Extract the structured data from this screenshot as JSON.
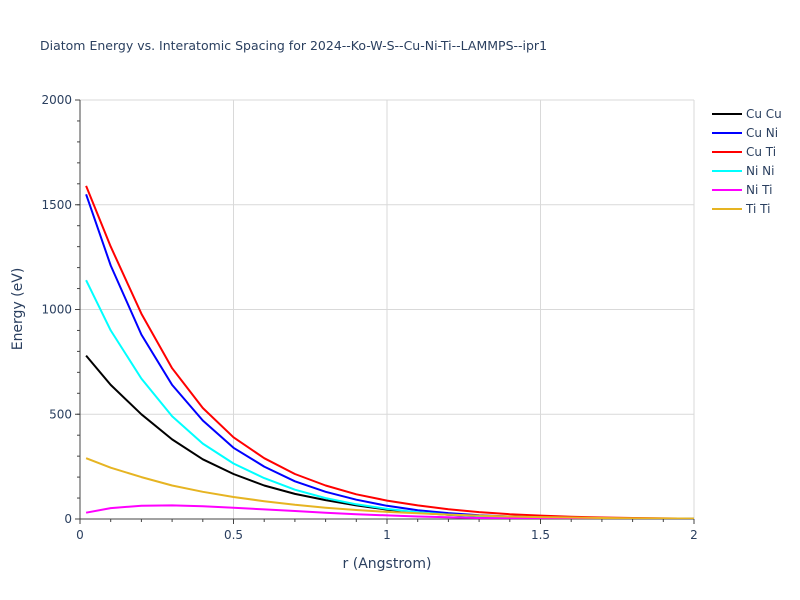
{
  "chart_data": {
    "type": "line",
    "title": "Diatom Energy vs. Interatomic Spacing for 2024--Ko-W-S--Cu-Ni-Ti--LAMMPS--ipr1",
    "xlabel": "r (Angstrom)",
    "ylabel": "Energy (eV)",
    "xlim": [
      0,
      2
    ],
    "ylim": [
      0,
      2000
    ],
    "xticks": [
      "0",
      "0.5",
      "1",
      "1.5",
      "2"
    ],
    "yticks": [
      "0",
      "500",
      "1000",
      "1500",
      "2000"
    ],
    "x_minor_step": 0.1,
    "y_minor_step": 100,
    "grid": true,
    "legend_position": "top-right",
    "series": [
      {
        "name": "Cu Cu",
        "color": "#000000",
        "x": [
          0.02,
          0.1,
          0.2,
          0.3,
          0.4,
          0.5,
          0.6,
          0.7,
          0.8,
          0.9,
          1.0,
          1.1,
          1.2,
          1.3,
          1.4,
          1.5,
          1.6,
          1.7,
          1.8,
          1.9,
          2.0
        ],
        "y": [
          780,
          640,
          500,
          380,
          285,
          215,
          160,
          120,
          90,
          65,
          45,
          30,
          20,
          13,
          9,
          6,
          4,
          3,
          2,
          1,
          1
        ]
      },
      {
        "name": "Cu Ni",
        "color": "#0000ff",
        "x": [
          0.02,
          0.1,
          0.2,
          0.3,
          0.4,
          0.5,
          0.6,
          0.7,
          0.8,
          0.9,
          1.0,
          1.1,
          1.2,
          1.3,
          1.4,
          1.5,
          1.6,
          1.7,
          1.8,
          1.9,
          2.0
        ],
        "y": [
          1550,
          1210,
          880,
          640,
          470,
          340,
          250,
          180,
          130,
          92,
          63,
          42,
          28,
          18,
          12,
          8,
          5,
          3,
          2,
          1,
          1
        ]
      },
      {
        "name": "Cu Ti",
        "color": "#ff0000",
        "x": [
          0.02,
          0.1,
          0.2,
          0.3,
          0.4,
          0.5,
          0.6,
          0.7,
          0.8,
          0.9,
          1.0,
          1.1,
          1.2,
          1.3,
          1.4,
          1.5,
          1.6,
          1.7,
          1.8,
          1.9,
          2.0
        ],
        "y": [
          1590,
          1300,
          980,
          720,
          530,
          390,
          290,
          215,
          160,
          118,
          88,
          65,
          47,
          33,
          23,
          16,
          11,
          7,
          5,
          3,
          2
        ]
      },
      {
        "name": "Ni Ni",
        "color": "#00ffff",
        "x": [
          0.02,
          0.1,
          0.2,
          0.3,
          0.4,
          0.5,
          0.6,
          0.7,
          0.8,
          0.9,
          1.0,
          1.1,
          1.2,
          1.3,
          1.4,
          1.5,
          1.6,
          1.7,
          1.8,
          1.9,
          2.0
        ],
        "y": [
          1140,
          900,
          670,
          490,
          360,
          265,
          195,
          140,
          100,
          70,
          48,
          32,
          21,
          14,
          9,
          6,
          4,
          3,
          2,
          1,
          1
        ]
      },
      {
        "name": "Ni Ti",
        "color": "#ff00ff",
        "x": [
          0.02,
          0.1,
          0.2,
          0.3,
          0.4,
          0.5,
          0.6,
          0.7,
          0.8,
          0.9,
          1.0,
          1.1,
          1.2,
          1.3,
          1.4,
          1.5,
          1.6,
          1.7,
          1.8,
          1.9,
          2.0
        ],
        "y": [
          30,
          52,
          63,
          65,
          61,
          54,
          46,
          38,
          30,
          23,
          17,
          12,
          8,
          5,
          3,
          2,
          1,
          1,
          0,
          0,
          0
        ]
      },
      {
        "name": "Ti Ti",
        "color": "#e6b422",
        "x": [
          0.02,
          0.1,
          0.2,
          0.3,
          0.4,
          0.5,
          0.6,
          0.7,
          0.8,
          0.9,
          1.0,
          1.1,
          1.2,
          1.3,
          1.4,
          1.5,
          1.6,
          1.7,
          1.8,
          1.9,
          2.0
        ],
        "y": [
          290,
          245,
          200,
          160,
          130,
          105,
          85,
          68,
          54,
          43,
          34,
          27,
          21,
          16,
          12,
          9,
          7,
          5,
          4,
          3,
          2
        ]
      }
    ]
  }
}
